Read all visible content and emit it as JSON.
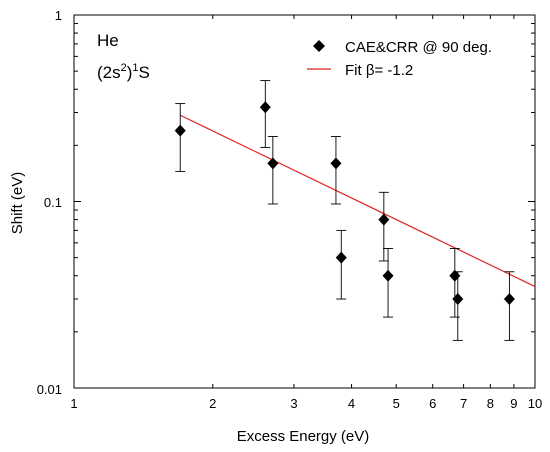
{
  "chart_data": {
    "type": "scatter",
    "xlabel": "Excess Energy (eV)",
    "ylabel": "Shift (eV)",
    "xscale": "log",
    "yscale": "log",
    "xlim": [
      1,
      10
    ],
    "ylim": [
      0.01,
      1
    ],
    "x_tick_labels": [
      "1",
      "2",
      "3",
      "4",
      "5",
      "6",
      "7",
      "8",
      "9",
      "10"
    ],
    "y_tick_labels": [
      "0.01",
      "0.1",
      "1"
    ],
    "grid": false,
    "legend_position": "top-right",
    "annotation": {
      "line1": "He",
      "line2_a": "(2s",
      "line2_sup1": "2",
      "line2_b": ")",
      "line2_sup2": "1",
      "line2_c": "S"
    },
    "series": [
      {
        "name": "CAE&CRR @ 90 deg.",
        "marker": "diamond",
        "color": "#000000",
        "points": [
          {
            "x": 1.7,
            "y": 0.24,
            "ylow": 0.145,
            "yhigh": 0.335
          },
          {
            "x": 2.6,
            "y": 0.32,
            "ylow": 0.195,
            "yhigh": 0.445
          },
          {
            "x": 2.7,
            "y": 0.16,
            "ylow": 0.097,
            "yhigh": 0.223
          },
          {
            "x": 3.7,
            "y": 0.16,
            "ylow": 0.097,
            "yhigh": 0.223
          },
          {
            "x": 3.8,
            "y": 0.05,
            "ylow": 0.03,
            "yhigh": 0.07
          },
          {
            "x": 4.7,
            "y": 0.08,
            "ylow": 0.048,
            "yhigh": 0.112
          },
          {
            "x": 4.8,
            "y": 0.04,
            "ylow": 0.024,
            "yhigh": 0.056
          },
          {
            "x": 6.7,
            "y": 0.04,
            "ylow": 0.024,
            "yhigh": 0.056
          },
          {
            "x": 6.8,
            "y": 0.03,
            "ylow": 0.018,
            "yhigh": 0.042
          },
          {
            "x": 8.8,
            "y": 0.03,
            "ylow": 0.018,
            "yhigh": 0.042
          }
        ]
      },
      {
        "name_prefix": "Fit ",
        "name_symbol": "β",
        "name_suffix": "= -1.2",
        "type": "line",
        "color": "#e02020",
        "points": [
          {
            "x": 1.7,
            "y": 0.29
          },
          {
            "x": 10,
            "y": 0.035
          }
        ]
      }
    ]
  }
}
